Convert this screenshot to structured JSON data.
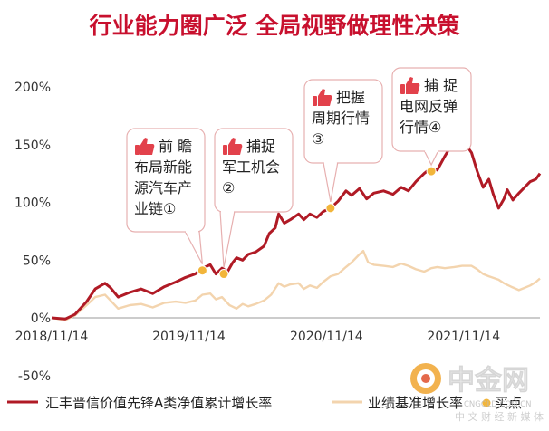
{
  "title": "行业能力圈广泛   全局视野做理性决策",
  "colors": {
    "title": "#c8102e",
    "fund_line": "#b01a25",
    "benchmark_line": "#f3d4ae",
    "dot": "#f2b53a",
    "callout_border": "#e7b0b0",
    "thumb": "#e2414b"
  },
  "chart_data": {
    "type": "line",
    "y_ticks": [
      "200%",
      "150%",
      "100%",
      "50%",
      "0%",
      "-50%"
    ],
    "x_ticks": [
      "2018/11/14",
      "2019/11/14",
      "2020/11/14",
      "2021/11/14"
    ],
    "y_range_percent": [
      -50,
      200
    ],
    "series": [
      {
        "name": "汇丰晋信价值先锋A类净值累计增长率",
        "points": [
          [
            "2018/11/14",
            0
          ],
          [
            "2018/12/20",
            -1
          ],
          [
            "2019/01/15",
            3
          ],
          [
            "2019/02/15",
            14
          ],
          [
            "2019/03/10",
            25
          ],
          [
            "2019/04/05",
            30
          ],
          [
            "2019/04/20",
            26
          ],
          [
            "2019/05/10",
            18
          ],
          [
            "2019/06/10",
            22
          ],
          [
            "2019/07/10",
            25
          ],
          [
            "2019/08/10",
            21
          ],
          [
            "2019/09/10",
            27
          ],
          [
            "2019/10/10",
            31
          ],
          [
            "2019/11/05",
            35
          ],
          [
            "2019/12/01",
            38
          ],
          [
            "2019/12/20",
            43
          ],
          [
            "2020/01/10",
            46
          ],
          [
            "2020/01/25",
            38
          ],
          [
            "2020/02/10",
            43
          ],
          [
            "2020/02/25",
            40
          ],
          [
            "2020/03/10",
            48
          ],
          [
            "2020/03/20",
            52
          ],
          [
            "2020/04/05",
            50
          ],
          [
            "2020/04/20",
            55
          ],
          [
            "2020/05/10",
            57
          ],
          [
            "2020/06/01",
            62
          ],
          [
            "2020/06/15",
            73
          ],
          [
            "2020/07/01",
            78
          ],
          [
            "2020/07/10",
            90
          ],
          [
            "2020/07/25",
            82
          ],
          [
            "2020/08/10",
            85
          ],
          [
            "2020/09/01",
            90
          ],
          [
            "2020/09/15",
            85
          ],
          [
            "2020/10/01",
            90
          ],
          [
            "2020/10/20",
            87
          ],
          [
            "2020/11/05",
            92
          ],
          [
            "2020/11/25",
            95
          ],
          [
            "2020/12/15",
            101
          ],
          [
            "2021/01/05",
            110
          ],
          [
            "2021/01/20",
            106
          ],
          [
            "2021/02/10",
            112
          ],
          [
            "2021/03/01",
            103
          ],
          [
            "2021/03/20",
            108
          ],
          [
            "2021/04/15",
            110
          ],
          [
            "2021/05/10",
            107
          ],
          [
            "2021/06/01",
            113
          ],
          [
            "2021/06/20",
            110
          ],
          [
            "2021/07/10",
            118
          ],
          [
            "2021/08/01",
            125
          ],
          [
            "2021/08/20",
            130
          ],
          [
            "2021/09/05",
            128
          ],
          [
            "2021/09/25",
            140
          ],
          [
            "2021/10/10",
            148
          ],
          [
            "2021/10/25",
            152
          ],
          [
            "2021/11/01",
            155
          ],
          [
            "2021/11/10",
            158
          ],
          [
            "2021/11/20",
            150
          ],
          [
            "2021/12/05",
            143
          ],
          [
            "2021/12/20",
            127
          ],
          [
            "2022/01/05",
            113
          ],
          [
            "2022/01/20",
            120
          ],
          [
            "2022/02/01",
            107
          ],
          [
            "2022/02/15",
            95
          ],
          [
            "2022/03/01",
            103
          ],
          [
            "2022/03/10",
            111
          ],
          [
            "2022/03/25",
            102
          ],
          [
            "2022/04/10",
            108
          ],
          [
            "2022/04/25",
            113
          ],
          [
            "2022/05/10",
            118
          ],
          [
            "2022/05/25",
            120
          ],
          [
            "2022/06/05",
            125
          ]
        ]
      },
      {
        "name": "业绩基准增长率",
        "points": [
          [
            "2018/11/14",
            0
          ],
          [
            "2018/12/20",
            -2
          ],
          [
            "2019/01/15",
            2
          ],
          [
            "2019/02/15",
            11
          ],
          [
            "2019/03/10",
            18
          ],
          [
            "2019/04/05",
            20
          ],
          [
            "2019/04/20",
            15
          ],
          [
            "2019/05/10",
            8
          ],
          [
            "2019/06/10",
            11
          ],
          [
            "2019/07/10",
            12
          ],
          [
            "2019/08/10",
            9
          ],
          [
            "2019/09/10",
            13
          ],
          [
            "2019/10/10",
            14
          ],
          [
            "2019/11/05",
            13
          ],
          [
            "2019/12/01",
            15
          ],
          [
            "2019/12/20",
            20
          ],
          [
            "2020/01/10",
            21
          ],
          [
            "2020/01/25",
            16
          ],
          [
            "2020/02/10",
            18
          ],
          [
            "2020/03/01",
            11
          ],
          [
            "2020/03/20",
            8
          ],
          [
            "2020/04/05",
            12
          ],
          [
            "2020/04/20",
            10
          ],
          [
            "2020/05/10",
            12
          ],
          [
            "2020/06/01",
            15
          ],
          [
            "2020/06/20",
            20
          ],
          [
            "2020/07/10",
            30
          ],
          [
            "2020/07/25",
            27
          ],
          [
            "2020/08/10",
            29
          ],
          [
            "2020/09/01",
            30
          ],
          [
            "2020/09/15",
            25
          ],
          [
            "2020/10/01",
            28
          ],
          [
            "2020/10/20",
            26
          ],
          [
            "2020/11/05",
            31
          ],
          [
            "2020/11/25",
            36
          ],
          [
            "2020/12/15",
            38
          ],
          [
            "2021/01/05",
            44
          ],
          [
            "2021/01/20",
            48
          ],
          [
            "2021/02/10",
            55
          ],
          [
            "2021/02/20",
            58
          ],
          [
            "2021/03/05",
            48
          ],
          [
            "2021/03/20",
            46
          ],
          [
            "2021/04/15",
            45
          ],
          [
            "2021/05/10",
            44
          ],
          [
            "2021/06/01",
            47
          ],
          [
            "2021/06/20",
            45
          ],
          [
            "2021/07/10",
            42
          ],
          [
            "2021/08/01",
            40
          ],
          [
            "2021/08/20",
            43
          ],
          [
            "2021/09/05",
            44
          ],
          [
            "2021/09/25",
            43
          ],
          [
            "2021/10/20",
            44
          ],
          [
            "2021/11/10",
            45
          ],
          [
            "2021/12/05",
            45
          ],
          [
            "2021/12/20",
            42
          ],
          [
            "2022/01/05",
            38
          ],
          [
            "2022/01/20",
            36
          ],
          [
            "2022/02/15",
            33
          ],
          [
            "2022/03/01",
            30
          ],
          [
            "2022/03/20",
            27
          ],
          [
            "2022/04/10",
            24
          ],
          [
            "2022/04/25",
            26
          ],
          [
            "2022/05/10",
            28
          ],
          [
            "2022/05/25",
            31
          ],
          [
            "2022/06/05",
            34
          ]
        ]
      }
    ],
    "buy_points": [
      {
        "date": "2019/12/20",
        "value": 41
      },
      {
        "date": "2020/02/15",
        "value": 38
      },
      {
        "date": "2020/11/25",
        "value": 95
      },
      {
        "date": "2021/08/20",
        "value": 127
      }
    ],
    "callouts": [
      {
        "lines": [
          "前  瞻",
          "布局新能",
          "源汽车产",
          "业链①"
        ],
        "point": 0
      },
      {
        "lines": [
          "捕捉",
          "军工机会",
          "②"
        ],
        "point": 1
      },
      {
        "lines": [
          "把握",
          "周期行情",
          "③"
        ],
        "point": 2
      },
      {
        "lines": [
          "捕  捉",
          "电网反弹",
          "行情④"
        ],
        "point": 3
      }
    ]
  },
  "legend": {
    "fund": "汇丰晋信价值先锋A类净值累计增长率",
    "benchmark": "业绩基准增长率",
    "point": "买点"
  },
  "watermark": {
    "brand": "中金网",
    "domain": "CNGOLD.COM.CN",
    "tagline": "中 文 财 经 新 媒 体"
  }
}
